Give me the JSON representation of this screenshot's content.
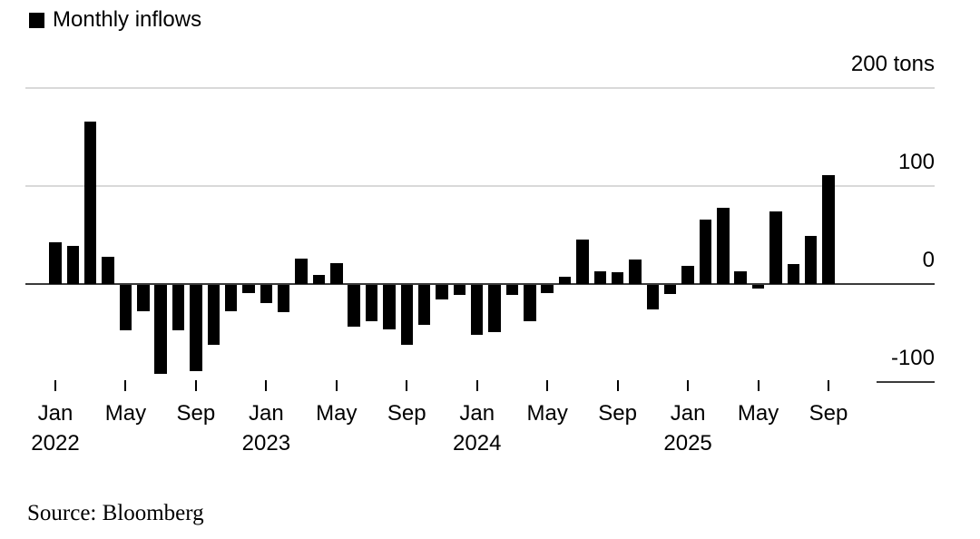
{
  "legend": {
    "label": "Monthly inflows",
    "swatch_color": "#000000"
  },
  "source": {
    "text": "Source: Bloomberg"
  },
  "chart_data": {
    "type": "bar",
    "title": "Monthly inflows",
    "unit": "tons",
    "bar_color": "#000000",
    "grid_color": "#d9d9d9",
    "axis_line_color": "#3a3a3a",
    "ylim": [
      -100,
      200
    ],
    "grid": "horizontal",
    "legend_position": "top-left",
    "xlabel": "",
    "ylabel": "tons",
    "x": [
      "Jan 2022",
      "Feb 2022",
      "Mar 2022",
      "Apr 2022",
      "May 2022",
      "Jun 2022",
      "Jul 2022",
      "Aug 2022",
      "Sep 2022",
      "Oct 2022",
      "Nov 2022",
      "Dec 2022",
      "Jan 2023",
      "Feb 2023",
      "Mar 2023",
      "Apr 2023",
      "May 2023",
      "Jun 2023",
      "Jul 2023",
      "Aug 2023",
      "Sep 2023",
      "Oct 2023",
      "Nov 2023",
      "Dec 2023",
      "Jan 2024",
      "Feb 2024",
      "Mar 2024",
      "Apr 2024",
      "May 2024",
      "Jun 2024",
      "Jul 2024",
      "Aug 2024",
      "Sep 2024",
      "Oct 2024",
      "Nov 2024",
      "Dec 2024",
      "Jan 2025",
      "Feb 2025",
      "Mar 2025",
      "Apr 2025",
      "May 2025",
      "Jun 2025",
      "Jul 2025",
      "Aug 2025",
      "Sep 2025"
    ],
    "values": [
      43,
      39,
      166,
      28,
      -46,
      -27,
      -91,
      -46,
      -88,
      -61,
      -27,
      -8,
      -19,
      -28,
      26,
      9,
      21,
      -43,
      -37,
      -45,
      -61,
      -41,
      -15,
      -10,
      -51,
      -48,
      -10,
      -37,
      -8,
      7,
      45,
      13,
      12,
      25,
      -25,
      -9,
      19,
      66,
      78,
      13,
      -4,
      74,
      20,
      49,
      111
    ],
    "y_ticks": [
      {
        "value": 200,
        "label": "200 tons"
      },
      {
        "value": 100,
        "label": "100"
      },
      {
        "value": 0,
        "label": "0"
      },
      {
        "value": -100,
        "label": "-100"
      }
    ],
    "x_ticks": [
      {
        "index": 0,
        "month": "Jan",
        "year": "2022"
      },
      {
        "index": 4,
        "month": "May",
        "year": ""
      },
      {
        "index": 8,
        "month": "Sep",
        "year": ""
      },
      {
        "index": 12,
        "month": "Jan",
        "year": "2023"
      },
      {
        "index": 16,
        "month": "May",
        "year": ""
      },
      {
        "index": 20,
        "month": "Sep",
        "year": ""
      },
      {
        "index": 24,
        "month": "Jan",
        "year": "2024"
      },
      {
        "index": 28,
        "month": "May",
        "year": ""
      },
      {
        "index": 32,
        "month": "Sep",
        "year": ""
      },
      {
        "index": 36,
        "month": "Jan",
        "year": "2025"
      },
      {
        "index": 40,
        "month": "May",
        "year": ""
      },
      {
        "index": 44,
        "month": "Sep",
        "year": ""
      }
    ]
  }
}
